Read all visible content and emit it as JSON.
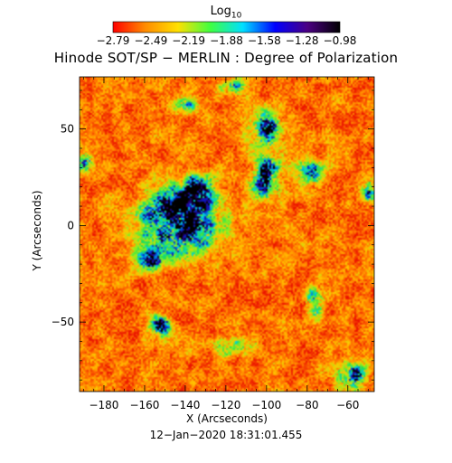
{
  "colorbar": {
    "label": "Log",
    "label_sub": "10",
    "ticks": [
      "−2.79",
      "−2.49",
      "−2.19",
      "−1.88",
      "−1.58",
      "−1.28",
      "−0.98"
    ],
    "colormap": [
      "#ff0000",
      "#ff8c00",
      "#ffe000",
      "#40ff40",
      "#00e0ff",
      "#0000ff",
      "#4b0082",
      "#000000"
    ]
  },
  "title": "Hinode SOT/SP − MERLIN : Degree of Polarization",
  "timestamp": "12−Jan−2020 18:31:01.455",
  "chart_data": {
    "type": "heatmap",
    "title": "Hinode SOT/SP − MERLIN : Degree of Polarization",
    "xlabel": "X (Arcseconds)",
    "ylabel": "Y (Arcseconds)",
    "xlim": [
      -192,
      -47
    ],
    "ylim": [
      -86,
      77
    ],
    "x_ticks": [
      -180,
      -160,
      -140,
      -120,
      -100,
      -80,
      -60
    ],
    "y_ticks": [
      -50,
      0,
      50
    ],
    "color_range": [
      -2.79,
      -0.98
    ],
    "color_scale": "log10",
    "grid": false,
    "high_polarization_regions": [
      {
        "x": -143,
        "y": 2,
        "rx": 20,
        "ry": 18,
        "level": 0.95
      },
      {
        "x": -134,
        "y": 17,
        "rx": 9,
        "ry": 9,
        "level": 0.85
      },
      {
        "x": -156,
        "y": -18,
        "rx": 7,
        "ry": 7,
        "level": 0.8
      },
      {
        "x": -100,
        "y": 50,
        "rx": 7,
        "ry": 9,
        "level": 0.9
      },
      {
        "x": -100,
        "y": 25,
        "rx": 8,
        "ry": 13,
        "level": 0.8
      },
      {
        "x": -78,
        "y": 27,
        "rx": 7,
        "ry": 8,
        "level": 0.5
      },
      {
        "x": -152,
        "y": -52,
        "rx": 6,
        "ry": 5,
        "level": 0.8
      },
      {
        "x": -76,
        "y": -40,
        "rx": 5,
        "ry": 9,
        "level": 0.65
      },
      {
        "x": -58,
        "y": -78,
        "rx": 9,
        "ry": 7,
        "level": 0.75
      },
      {
        "x": -50,
        "y": 18,
        "rx": 4,
        "ry": 6,
        "level": 0.7
      },
      {
        "x": -189,
        "y": 33,
        "rx": 4,
        "ry": 5,
        "level": 0.6
      },
      {
        "x": -117,
        "y": 72,
        "rx": 7,
        "ry": 4,
        "level": 0.55
      },
      {
        "x": -140,
        "y": 62,
        "rx": 7,
        "ry": 5,
        "level": 0.45
      },
      {
        "x": -115,
        "y": -62,
        "rx": 10,
        "ry": 6,
        "level": 0.4
      }
    ],
    "background_level": 0.15
  }
}
